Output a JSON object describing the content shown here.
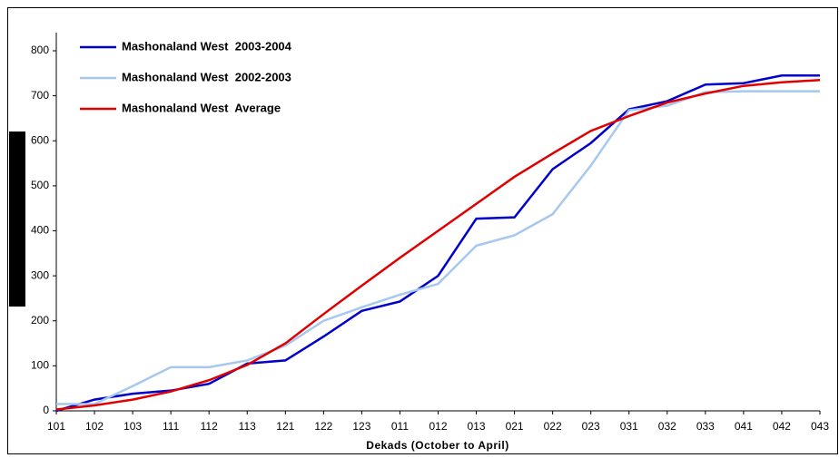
{
  "chart_data": {
    "type": "line",
    "x_label": "Dekads (October to April)",
    "categories": [
      "101",
      "102",
      "103",
      "111",
      "112",
      "113",
      "121",
      "122",
      "123",
      "011",
      "012",
      "013",
      "021",
      "022",
      "023",
      "031",
      "032",
      "033",
      "041",
      "042",
      "043"
    ],
    "series": [
      {
        "name": "Mashonaland West  2003-2004",
        "color": "#0000cc",
        "values": [
          0,
          25,
          38,
          45,
          60,
          105,
          112,
          165,
          222,
          243,
          300,
          427,
          430,
          537,
          595,
          670,
          688,
          725,
          728,
          745,
          745
        ]
      },
      {
        "name": "Mashonaland West  2002-2003",
        "color": "#a6c8ee",
        "values": [
          15,
          15,
          55,
          97,
          97,
          112,
          145,
          200,
          230,
          258,
          282,
          367,
          390,
          437,
          545,
          668,
          678,
          708,
          710,
          710,
          710
        ]
      },
      {
        "name": "Mashonaland West  Average",
        "color": "#e00000",
        "values": [
          3,
          12,
          25,
          43,
          68,
          102,
          150,
          215,
          278,
          340,
          400,
          460,
          520,
          572,
          622,
          655,
          685,
          705,
          722,
          730,
          735
        ]
      }
    ],
    "ylim": [
      0,
      800
    ],
    "yticks": [
      0,
      100,
      200,
      300,
      400,
      500,
      600,
      700,
      800
    ],
    "grid": false,
    "legend": "top-left"
  }
}
